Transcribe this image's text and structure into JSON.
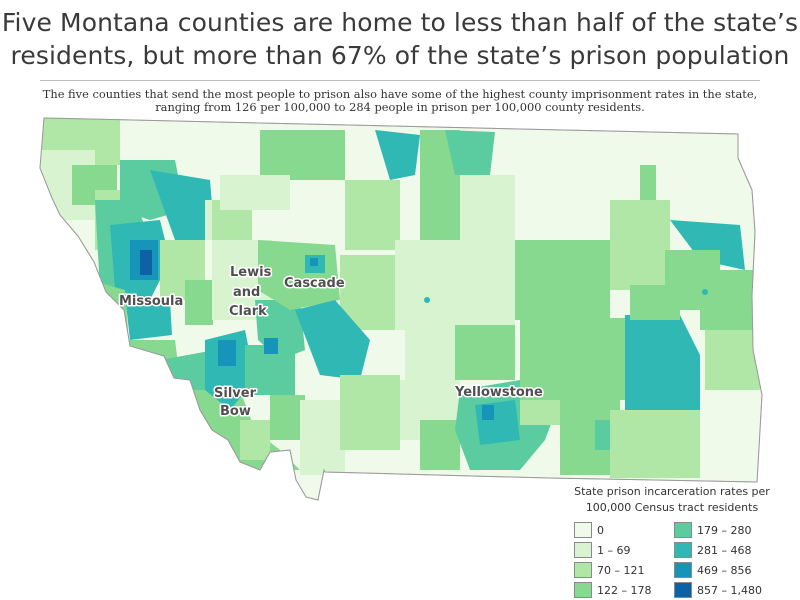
{
  "title": {
    "line1": "Five Montana counties are home to less than half of the state’s",
    "line2": "residents, but more than 67% of the state’s prison population"
  },
  "subtitle": {
    "line1": "The five counties that send the most people to prison also have some of the highest county imprisonment rates in the state,",
    "line2": "ranging from 126 per 100,000 to 284 people in prison per 100,000 county residents."
  },
  "map": {
    "labels": {
      "missoula": "Missoula",
      "lewis_and_clark_1": "Lewis",
      "lewis_and_clark_2": "and",
      "lewis_and_clark_3": "Clark",
      "cascade": "Cascade",
      "silver_bow_1": "Silver",
      "silver_bow_2": "Bow",
      "yellowstone": "Yellowstone"
    }
  },
  "legend": {
    "title_line1": "State prison incarceration rates per",
    "title_line2": "100,000 Census tract residents",
    "items": [
      {
        "label": "0",
        "color": "#effaea"
      },
      {
        "label": "179 – 280",
        "color": "#5bcca0"
      },
      {
        "label": "1 – 69",
        "color": "#d8f3d0"
      },
      {
        "label": "281 – 468",
        "color": "#30b9b4"
      },
      {
        "label": "70 – 121",
        "color": "#b0e6a6"
      },
      {
        "label": "469 – 856",
        "color": "#1694b9"
      },
      {
        "label": "122 – 178",
        "color": "#86d98f"
      },
      {
        "label": "857 – 1,480",
        "color": "#0d62a6"
      }
    ]
  }
}
